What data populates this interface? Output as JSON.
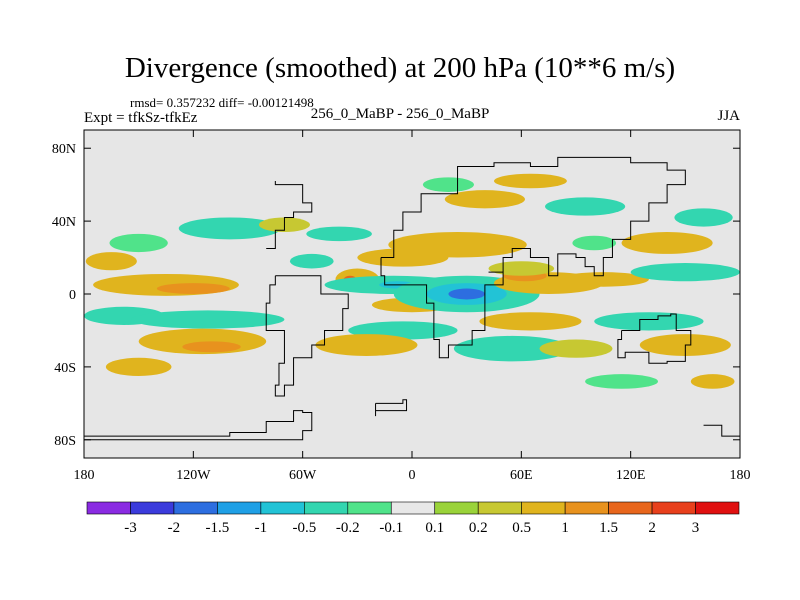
{
  "header": {
    "title": "Divergence (smoothed) at 200 hPa (10**6 m/s)",
    "stats": "rmsd= 0.357232 diff= -0.00121498",
    "experiment": "Expt = tfkSz-tfkEz",
    "runs": "256_0_MaBP - 256_0_MaBP",
    "season": "JJA"
  },
  "chart_data": {
    "type": "heatmap",
    "title": "Divergence (smoothed) at 200 hPa (10**6 m/s)",
    "xlabel": "",
    "ylabel": "",
    "xlim": [
      -180,
      180
    ],
    "ylim": [
      -90,
      90
    ],
    "x_ticks": [
      {
        "value": -180,
        "label": "180"
      },
      {
        "value": -120,
        "label": "120W"
      },
      {
        "value": -60,
        "label": "60W"
      },
      {
        "value": 0,
        "label": "0"
      },
      {
        "value": 60,
        "label": "60E"
      },
      {
        "value": 120,
        "label": "120E"
      },
      {
        "value": 180,
        "label": "180"
      }
    ],
    "y_ticks": [
      {
        "value": 80,
        "label": "80N"
      },
      {
        "value": 40,
        "label": "40N"
      },
      {
        "value": 0,
        "label": "0"
      },
      {
        "value": -40,
        "label": "40S"
      },
      {
        "value": -80,
        "label": "80S"
      }
    ],
    "colorbar": {
      "labels": [
        "-3",
        "-2",
        "-1.5",
        "-1",
        "-0.5",
        "-0.2",
        "-0.1",
        "0.1",
        "0.2",
        "0.5",
        "1",
        "1.5",
        "2",
        "3"
      ],
      "colors": [
        "#8a2be2",
        "#3b3bdc",
        "#2d6ee0",
        "#1fa0e6",
        "#22c3d6",
        "#33d6b0",
        "#50e38a",
        "#e8e8e8",
        "#9ad33a",
        "#c7c832",
        "#e0b41e",
        "#e8921e",
        "#e8661c",
        "#e8401c",
        "#e01010"
      ]
    },
    "field_background": "#e6e6e6",
    "features": [
      {
        "lon": -165,
        "lat": 18,
        "rx": 14,
        "ry": 5,
        "value": 0.5
      },
      {
        "lon": -150,
        "lat": 28,
        "rx": 16,
        "ry": 5,
        "value": -0.2
      },
      {
        "lon": -135,
        "lat": 5,
        "rx": 40,
        "ry": 6,
        "value": 0.5
      },
      {
        "lon": -120,
        "lat": 3,
        "rx": 20,
        "ry": 3,
        "value": 1
      },
      {
        "lon": -158,
        "lat": -12,
        "rx": 22,
        "ry": 5,
        "value": -0.5
      },
      {
        "lon": -112,
        "lat": -14,
        "rx": 42,
        "ry": 5,
        "value": -0.5
      },
      {
        "lon": -115,
        "lat": -26,
        "rx": 35,
        "ry": 7,
        "value": 0.5
      },
      {
        "lon": -110,
        "lat": -29,
        "rx": 16,
        "ry": 3,
        "value": 1
      },
      {
        "lon": -150,
        "lat": -40,
        "rx": 18,
        "ry": 5,
        "value": 0.5
      },
      {
        "lon": -100,
        "lat": 36,
        "rx": 28,
        "ry": 6,
        "value": -0.5
      },
      {
        "lon": -70,
        "lat": 38,
        "rx": 14,
        "ry": 4,
        "value": 0.2
      },
      {
        "lon": -40,
        "lat": 33,
        "rx": 18,
        "ry": 4,
        "value": -0.5
      },
      {
        "lon": -30,
        "lat": 8,
        "rx": 12,
        "ry": 6,
        "value": 0.5
      },
      {
        "lon": -34,
        "lat": 7,
        "rx": 4,
        "ry": 3,
        "value": 1.5
      },
      {
        "lon": -10,
        "lat": 5,
        "rx": 38,
        "ry": 5,
        "value": -0.5
      },
      {
        "lon": -8,
        "lat": 5,
        "rx": 10,
        "ry": 2,
        "value": -1
      },
      {
        "lon": -55,
        "lat": 18,
        "rx": 12,
        "ry": 4,
        "value": -0.5
      },
      {
        "lon": -5,
        "lat": 20,
        "rx": 25,
        "ry": 5,
        "value": 0.5
      },
      {
        "lon": 0,
        "lat": -6,
        "rx": 22,
        "ry": 4,
        "value": 0.5
      },
      {
        "lon": -5,
        "lat": -20,
        "rx": 30,
        "ry": 5,
        "value": -0.5
      },
      {
        "lon": -25,
        "lat": -28,
        "rx": 28,
        "ry": 6,
        "value": 0.5
      },
      {
        "lon": 25,
        "lat": 27,
        "rx": 38,
        "ry": 7,
        "value": 0.5
      },
      {
        "lon": 40,
        "lat": 52,
        "rx": 22,
        "ry": 5,
        "value": 0.5
      },
      {
        "lon": 20,
        "lat": 60,
        "rx": 14,
        "ry": 4,
        "value": -0.2
      },
      {
        "lon": 65,
        "lat": 62,
        "rx": 20,
        "ry": 4,
        "value": 0.5
      },
      {
        "lon": 95,
        "lat": 48,
        "rx": 22,
        "ry": 5,
        "value": -0.5
      },
      {
        "lon": 140,
        "lat": 28,
        "rx": 25,
        "ry": 6,
        "value": 0.5
      },
      {
        "lon": 160,
        "lat": 42,
        "rx": 16,
        "ry": 5,
        "value": -0.5
      },
      {
        "lon": 30,
        "lat": 0,
        "rx": 40,
        "ry": 10,
        "value": -0.5
      },
      {
        "lon": 30,
        "lat": 0,
        "rx": 22,
        "ry": 6,
        "value": -1
      },
      {
        "lon": 30,
        "lat": 0,
        "rx": 10,
        "ry": 3,
        "value": -2
      },
      {
        "lon": 75,
        "lat": 6,
        "rx": 30,
        "ry": 6,
        "value": 0.5
      },
      {
        "lon": 62,
        "lat": 10,
        "rx": 12,
        "ry": 3,
        "value": 1
      },
      {
        "lon": 60,
        "lat": 14,
        "rx": 18,
        "ry": 4,
        "value": 0.2
      },
      {
        "lon": 105,
        "lat": 8,
        "rx": 25,
        "ry": 4,
        "value": 0.5
      },
      {
        "lon": 150,
        "lat": 12,
        "rx": 30,
        "ry": 5,
        "value": -0.5
      },
      {
        "lon": 65,
        "lat": -15,
        "rx": 28,
        "ry": 5,
        "value": 0.5
      },
      {
        "lon": 55,
        "lat": -30,
        "rx": 32,
        "ry": 7,
        "value": -0.5
      },
      {
        "lon": 90,
        "lat": -30,
        "rx": 20,
        "ry": 5,
        "value": 0.2
      },
      {
        "lon": 130,
        "lat": -15,
        "rx": 30,
        "ry": 5,
        "value": -0.5
      },
      {
        "lon": 150,
        "lat": -28,
        "rx": 25,
        "ry": 6,
        "value": 0.5
      },
      {
        "lon": 165,
        "lat": -48,
        "rx": 12,
        "ry": 4,
        "value": 0.5
      },
      {
        "lon": 115,
        "lat": -48,
        "rx": 20,
        "ry": 4,
        "value": -0.2
      },
      {
        "lon": 100,
        "lat": 28,
        "rx": 12,
        "ry": 4,
        "value": -0.2
      }
    ],
    "coastlines": [
      {
        "name": "south-america",
        "points": [
          [
            -75,
            10
          ],
          [
            -60,
            10
          ],
          [
            -50,
            0
          ],
          [
            -35,
            -8
          ],
          [
            -38,
            -20
          ],
          [
            -48,
            -28
          ],
          [
            -55,
            -35
          ],
          [
            -65,
            -50
          ],
          [
            -70,
            -56
          ],
          [
            -75,
            -50
          ],
          [
            -73,
            -38
          ],
          [
            -70,
            -20
          ],
          [
            -80,
            -5
          ],
          [
            -78,
            5
          ],
          [
            -75,
            10
          ]
        ]
      },
      {
        "name": "africa-europe-asia",
        "points": [
          [
            -17,
            20
          ],
          [
            -10,
            35
          ],
          [
            -5,
            45
          ],
          [
            5,
            55
          ],
          [
            25,
            70
          ],
          [
            45,
            72
          ],
          [
            65,
            70
          ],
          [
            80,
            75
          ],
          [
            100,
            75
          ],
          [
            120,
            72
          ],
          [
            140,
            68
          ],
          [
            150,
            60
          ],
          [
            140,
            50
          ],
          [
            130,
            40
          ],
          [
            120,
            30
          ],
          [
            110,
            20
          ],
          [
            105,
            10
          ],
          [
            100,
            15
          ],
          [
            95,
            20
          ],
          [
            90,
            22
          ],
          [
            80,
            10
          ],
          [
            75,
            20
          ],
          [
            65,
            25
          ],
          [
            55,
            20
          ],
          [
            50,
            12
          ],
          [
            42,
            12
          ],
          [
            50,
            5
          ],
          [
            40,
            -10
          ],
          [
            40,
            -20
          ],
          [
            33,
            -28
          ],
          [
            20,
            -35
          ],
          [
            15,
            -25
          ],
          [
            12,
            -5
          ],
          [
            8,
            5
          ],
          [
            -5,
            5
          ],
          [
            -15,
            10
          ],
          [
            -17,
            20
          ]
        ]
      },
      {
        "name": "north-america-east",
        "points": [
          [
            -80,
            25
          ],
          [
            -75,
            35
          ],
          [
            -70,
            42
          ],
          [
            -65,
            45
          ],
          [
            -55,
            50
          ],
          [
            -60,
            60
          ],
          [
            -75,
            62
          ]
        ]
      },
      {
        "name": "australia",
        "points": [
          [
            115,
            -20
          ],
          [
            125,
            -14
          ],
          [
            135,
            -12
          ],
          [
            142,
            -11
          ],
          [
            145,
            -20
          ],
          [
            153,
            -28
          ],
          [
            150,
            -37
          ],
          [
            140,
            -38
          ],
          [
            130,
            -32
          ],
          [
            117,
            -35
          ],
          [
            113,
            -25
          ],
          [
            115,
            -20
          ]
        ]
      },
      {
        "name": "antarctica",
        "points": [
          [
            -180,
            -80
          ],
          [
            -90,
            -80
          ],
          [
            -60,
            -75
          ],
          [
            -55,
            -65
          ],
          [
            -60,
            -64
          ],
          [
            -65,
            -70
          ],
          [
            -80,
            -76
          ],
          [
            -100,
            -78
          ],
          [
            -180,
            -78
          ]
        ]
      },
      {
        "name": "antarctica-east",
        "points": [
          [
            160,
            -72
          ],
          [
            170,
            -78
          ],
          [
            180,
            -80
          ]
        ]
      },
      {
        "name": "weddell-island",
        "points": [
          [
            -20,
            -60
          ],
          [
            -5,
            -58
          ],
          [
            -3,
            -64
          ],
          [
            -20,
            -67
          ],
          [
            -20,
            -60
          ]
        ]
      }
    ]
  }
}
